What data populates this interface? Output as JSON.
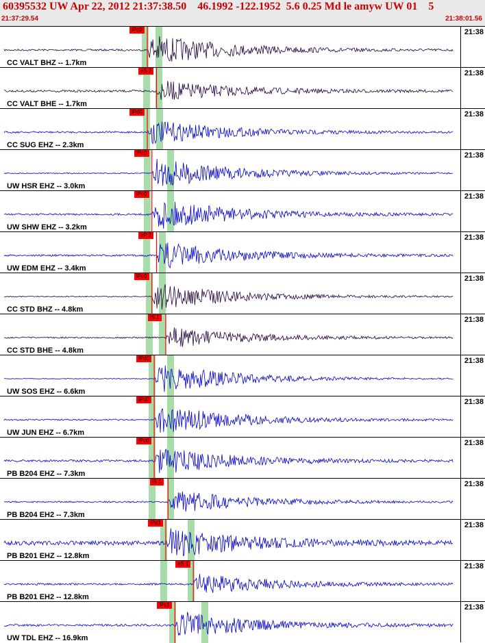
{
  "header": {
    "title": "60395532 UW Apr 22, 2012 21:37:38.50    46.1992 -122.1952  5.6 0.25 Md le amyw UW 01    5",
    "start_time": "21:37:29.54",
    "end_time": "21:38:01.56"
  },
  "colors": {
    "header_text": "#cc0000",
    "trace_dark": "#22003a",
    "trace_blue": "#0000cc",
    "pick": "#ff0000",
    "window_band": "#a8dca8"
  },
  "channels": [
    {
      "label": "CC VALT BHZ -- 1.7km",
      "time": "21:38",
      "pick": "iPc0",
      "pick_t": 0.32,
      "color": "dark",
      "amp": 0.9,
      "noise": 0.05,
      "bands": [
        0.315,
        0.345
      ]
    },
    {
      "label": "CC VALT BHE -- 1.7km",
      "time": "21:38",
      "pick": "eS 2",
      "pick_t": 0.34,
      "color": "dark",
      "amp": 0.6,
      "noise": 0.06,
      "bands": [
        0.318,
        0.345
      ]
    },
    {
      "label": "CC SUG EHZ -- 2.3km",
      "time": "21:38",
      "pick": "iPd0",
      "pick_t": 0.32,
      "color": "blue",
      "amp": 0.7,
      "noise": 0.05,
      "bands": [
        0.318,
        0.347
      ]
    },
    {
      "label": "UW HSR EHZ -- 3.0km",
      "time": "21:38",
      "pick": "iPc0",
      "pick_t": 0.33,
      "color": "blue",
      "amp": 0.9,
      "noise": 0.03,
      "bands": [
        0.32,
        0.37
      ]
    },
    {
      "label": "UW SHW EHZ -- 3.2km",
      "time": "21:38",
      "pick": "iPc0",
      "pick_t": 0.33,
      "color": "blue",
      "amp": 0.9,
      "noise": 0.05,
      "bands": [
        0.32,
        0.37
      ]
    },
    {
      "label": "UW EDM EHZ -- 3.4km",
      "time": "21:38",
      "pick": "eP 2",
      "pick_t": 0.34,
      "color": "blue",
      "amp": 0.8,
      "noise": 0.05,
      "bands": [
        0.318,
        0.352
      ]
    },
    {
      "label": "CC STD BHZ -- 4.8km",
      "time": "21:38",
      "pick": "iPc0",
      "pick_t": 0.33,
      "color": "dark",
      "amp": 0.8,
      "noise": 0.03,
      "bands": [
        0.325,
        0.352
      ]
    },
    {
      "label": "CC STD BHE -- 4.8km",
      "time": "21:38",
      "pick": "iS 1",
      "pick_t": 0.36,
      "color": "dark",
      "amp": 0.6,
      "noise": 0.04,
      "bands": [
        0.325,
        0.352
      ]
    },
    {
      "label": "UW SOS EHZ -- 6.6km",
      "time": "21:38",
      "pick": "iPd0",
      "pick_t": 0.335,
      "color": "blue",
      "amp": 0.9,
      "noise": 0.02,
      "bands": [
        0.33,
        0.37
      ]
    },
    {
      "label": "UW JUN EHZ -- 6.7km",
      "time": "21:38",
      "pick": "iPc0",
      "pick_t": 0.335,
      "color": "blue",
      "amp": 0.9,
      "noise": 0.04,
      "bands": [
        0.33,
        0.37
      ]
    },
    {
      "label": "PB B204 EHZ -- 7.3km",
      "time": "21:38",
      "pick": "iPc0",
      "pick_t": 0.335,
      "color": "blue",
      "amp": 0.8,
      "noise": 0.06,
      "bands": [
        0.33,
        0.37
      ]
    },
    {
      "label": "PB B204 EH2 -- 7.3km",
      "time": "21:38",
      "pick": "iS 1",
      "pick_t": 0.365,
      "color": "blue",
      "amp": 0.7,
      "noise": 0.04,
      "bands": [
        0.33,
        0.37
      ]
    },
    {
      "label": "PB B201 EHZ -- 12.8km",
      "time": "21:38",
      "pick": "iPd1",
      "pick_t": 0.36,
      "color": "blue",
      "amp": 0.8,
      "noise": 0.12,
      "bands": [
        0.355,
        0.415
      ]
    },
    {
      "label": "PB B201 EH2 -- 12.8km",
      "time": "21:38",
      "pick": "eS 1",
      "pick_t": 0.42,
      "color": "blue",
      "amp": 0.6,
      "noise": 0.05,
      "bands": [
        0.355,
        0.415
      ]
    },
    {
      "label": "UW TDL EHZ -- 16.9km",
      "time": "21:38",
      "pick": "iPc1",
      "pick_t": 0.38,
      "color": "blue",
      "amp": 0.8,
      "noise": 0.06,
      "bands": [
        0.375,
        0.445
      ]
    }
  ]
}
